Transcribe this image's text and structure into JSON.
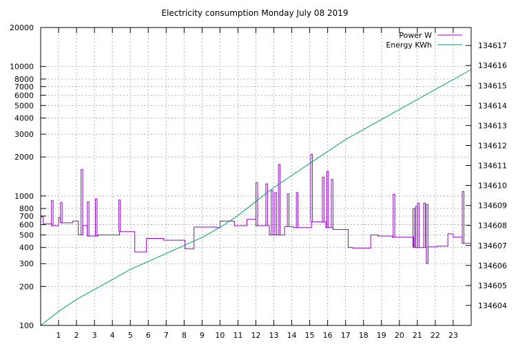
{
  "chart_data": {
    "type": "line",
    "title": "Electricity consumption Monday July 08 2019",
    "x": {
      "min": 0,
      "max": 24,
      "tick_labels": [
        "1",
        "2",
        "3",
        "4",
        "5",
        "6",
        "7",
        "8",
        "9",
        "10",
        "11",
        "12",
        "13",
        "14",
        "15",
        "16",
        "17",
        "18",
        "19",
        "20",
        "21",
        "22",
        "23"
      ],
      "tick_values": [
        1,
        2,
        3,
        4,
        5,
        6,
        7,
        8,
        9,
        10,
        11,
        12,
        13,
        14,
        15,
        16,
        17,
        18,
        19,
        20,
        21,
        22,
        23
      ]
    },
    "y_left": {
      "scale": "log",
      "min": 100,
      "max": 20000,
      "tick_values": [
        100,
        200,
        300,
        400,
        500,
        600,
        700,
        800,
        1000,
        2000,
        3000,
        4000,
        5000,
        6000,
        7000,
        8000,
        10000,
        20000
      ],
      "tick_labels": [
        "100",
        "200",
        "300",
        "400",
        "500",
        "600",
        "700",
        "800",
        "1000",
        "2000",
        "3000",
        "4000",
        "5000",
        "6000",
        "7000",
        "8000",
        "10000",
        "20000"
      ]
    },
    "y_right": {
      "scale": "linear",
      "min": 134603,
      "max": 134617.9,
      "tick_values": [
        134604,
        134605,
        134606,
        134607,
        134608,
        134609,
        134610,
        134611,
        134612,
        134613,
        134614,
        134615,
        134616,
        134617
      ],
      "tick_labels": [
        "134604",
        "134605",
        "134606",
        "134607",
        "134608",
        "134609",
        "134610",
        "134611",
        "134612",
        "134613",
        "134614",
        "134615",
        "134616",
        "134617"
      ]
    },
    "grid": true,
    "legend_position": "top-right",
    "series": [
      {
        "name": "Power W",
        "axis": "left",
        "color": "#9400d3",
        "step": true,
        "points": [
          [
            0,
            690
          ],
          [
            0.15,
            610
          ],
          [
            0.6,
            590
          ],
          [
            1.0,
            680
          ],
          [
            1.1,
            620
          ],
          [
            1.8,
            640
          ],
          [
            2.1,
            500
          ],
          [
            2.35,
            590
          ],
          [
            2.6,
            490
          ],
          [
            3.2,
            500
          ],
          [
            4.4,
            530
          ],
          [
            5.25,
            370
          ],
          [
            5.9,
            470
          ],
          [
            6.85,
            455
          ],
          [
            8.05,
            390
          ],
          [
            8.55,
            575
          ],
          [
            9.8,
            570
          ],
          [
            10.0,
            640
          ],
          [
            10.8,
            590
          ],
          [
            11.5,
            660
          ],
          [
            12.0,
            590
          ],
          [
            12.75,
            500
          ],
          [
            13.6,
            580
          ],
          [
            14.1,
            570
          ],
          [
            15.1,
            630
          ],
          [
            15.9,
            570
          ],
          [
            16.3,
            550
          ],
          [
            17.15,
            400
          ],
          [
            17.4,
            395
          ],
          [
            18.4,
            500
          ],
          [
            18.8,
            490
          ],
          [
            19.6,
            480
          ],
          [
            20.8,
            400
          ],
          [
            21.5,
            300
          ],
          [
            21.6,
            405
          ],
          [
            22.1,
            410
          ],
          [
            22.7,
            510
          ],
          [
            23.0,
            480
          ],
          [
            23.5,
            430
          ],
          [
            24,
            430
          ]
        ],
        "spikes": [
          [
            0.65,
            920
          ],
          [
            1.15,
            890
          ],
          [
            2.3,
            1600
          ],
          [
            2.65,
            900
          ],
          [
            3.1,
            950
          ],
          [
            4.4,
            930
          ],
          [
            12.05,
            1270
          ],
          [
            12.6,
            1240
          ],
          [
            12.9,
            1100
          ],
          [
            13.1,
            1060
          ],
          [
            13.3,
            1750
          ],
          [
            13.8,
            1040
          ],
          [
            14.3,
            1060
          ],
          [
            15.1,
            2100
          ],
          [
            15.75,
            1400
          ],
          [
            16.0,
            1550
          ],
          [
            16.25,
            1340
          ],
          [
            19.7,
            1030
          ],
          [
            20.8,
            800
          ],
          [
            20.95,
            830
          ],
          [
            21.05,
            880
          ],
          [
            21.4,
            880
          ],
          [
            21.55,
            860
          ],
          [
            23.55,
            1080
          ]
        ]
      },
      {
        "name": "Energy KWh",
        "axis": "right",
        "color": "#009e73",
        "step": false,
        "points": [
          [
            0,
            134603
          ],
          [
            1,
            134603.7
          ],
          [
            2,
            134604.3
          ],
          [
            3,
            134604.8
          ],
          [
            4,
            134605.3
          ],
          [
            5,
            134605.8
          ],
          [
            6,
            134606.2
          ],
          [
            7,
            134606.6
          ],
          [
            8,
            134607.0
          ],
          [
            9,
            134607.4
          ],
          [
            10,
            134607.9
          ],
          [
            11,
            134608.5
          ],
          [
            12,
            134609.2
          ],
          [
            13,
            134609.9
          ],
          [
            14,
            134610.5
          ],
          [
            15,
            134611.1
          ],
          [
            16,
            134611.7
          ],
          [
            17,
            134612.3
          ],
          [
            18,
            134612.8
          ],
          [
            19,
            134613.3
          ],
          [
            20,
            134613.8
          ],
          [
            21,
            134614.3
          ],
          [
            22,
            134614.8
          ],
          [
            23,
            134615.3
          ],
          [
            24,
            134615.8
          ]
        ]
      }
    ]
  }
}
